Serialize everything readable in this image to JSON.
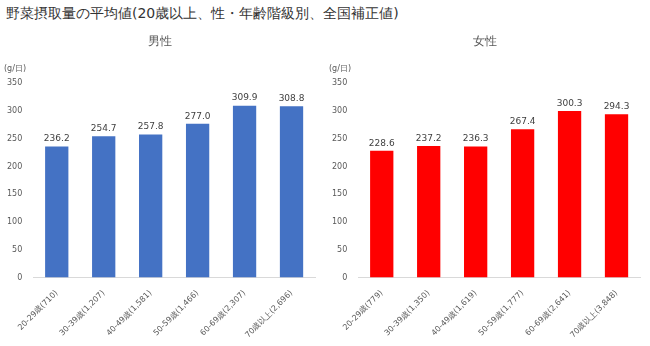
{
  "title": "野菜摂取量の平均値(20歳以上、性・年齢階級別、全国補正値)",
  "chart_data": [
    {
      "type": "bar",
      "title": "男性",
      "y_label": "(g/日)",
      "categories": [
        "20-29歳(710)",
        "30-39歳(1,207)",
        "40-49歳(1,581)",
        "50-59歳(1,466)",
        "60-69歳(2,307)",
        "70歳以上(2,696)"
      ],
      "values": [
        236.2,
        254.7,
        257.8,
        277.0,
        309.9,
        308.8
      ],
      "value_labels": [
        "236.2",
        "254.7",
        "257.8",
        "277.0",
        "309.9",
        "308.8"
      ],
      "color": "#4472c4",
      "ylim": [
        0,
        350
      ],
      "yticks": [
        0,
        50,
        100,
        150,
        200,
        250,
        300,
        350
      ],
      "grid": false,
      "data_labels": true
    },
    {
      "type": "bar",
      "title": "女性",
      "y_label": "(g/日)",
      "categories": [
        "20-29歳(779)",
        "30-39歳(1,350)",
        "40-49歳(1,619)",
        "50-59歳(1,777)",
        "60-69歳(2,641)",
        "70歳以上(3,848)"
      ],
      "values": [
        228.6,
        237.2,
        236.3,
        267.4,
        300.3,
        294.3
      ],
      "value_labels": [
        "228.6",
        "237.2",
        "236.3",
        "267.4",
        "300.3",
        "294.3"
      ],
      "color": "#ff0000",
      "ylim": [
        0,
        350
      ],
      "yticks": [
        0,
        50,
        100,
        150,
        200,
        250,
        300,
        350
      ],
      "grid": false,
      "data_labels": true
    }
  ]
}
